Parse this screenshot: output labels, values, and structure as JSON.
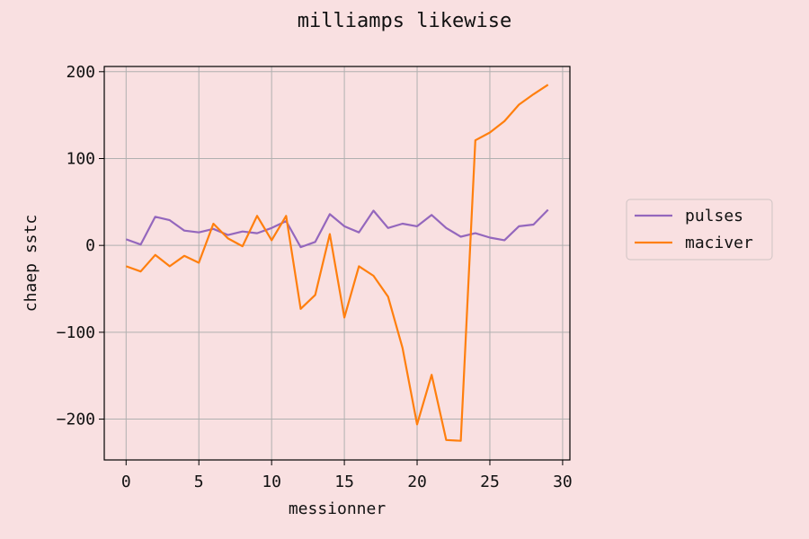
{
  "chart_data": {
    "type": "line",
    "title": "milliamps likewise",
    "xlabel": "messionner",
    "ylabel": "chaep sstc",
    "xlim": [
      -1.5,
      30.5
    ],
    "ylim": [
      -247,
      206
    ],
    "xticks": [
      0,
      5,
      10,
      15,
      20,
      25,
      30
    ],
    "yticks": [
      -200,
      -100,
      0,
      100,
      200
    ],
    "xtick_labels": [
      "0",
      "5",
      "10",
      "15",
      "20",
      "25",
      "30"
    ],
    "ytick_labels": [
      "−200",
      "−100",
      "0",
      "100",
      "200"
    ],
    "grid": true,
    "legend_position": "right, outside plot",
    "x": [
      0,
      1,
      2,
      3,
      4,
      5,
      6,
      7,
      8,
      9,
      10,
      11,
      12,
      13,
      14,
      15,
      16,
      17,
      18,
      19,
      20,
      21,
      22,
      23,
      24,
      25,
      26,
      27,
      28,
      29
    ],
    "series": [
      {
        "name": "pulses",
        "color": "#9467bd",
        "values": [
          7,
          1,
          33,
          29,
          17,
          15,
          19,
          12,
          16,
          14,
          20,
          28,
          -2,
          4,
          36,
          22,
          15,
          40,
          20,
          25,
          22,
          35,
          20,
          10,
          14,
          9,
          6,
          22,
          24,
          41
        ]
      },
      {
        "name": "maciver",
        "color": "#ff7f0e",
        "values": [
          -24,
          -30,
          -11,
          -24,
          -12,
          -20,
          25,
          8,
          -1,
          34,
          6,
          34,
          -73,
          -57,
          13,
          -83,
          -24,
          -35,
          -59,
          -118,
          -206,
          -149,
          -224,
          -225,
          121,
          130,
          143,
          162,
          174,
          185
        ]
      }
    ]
  }
}
